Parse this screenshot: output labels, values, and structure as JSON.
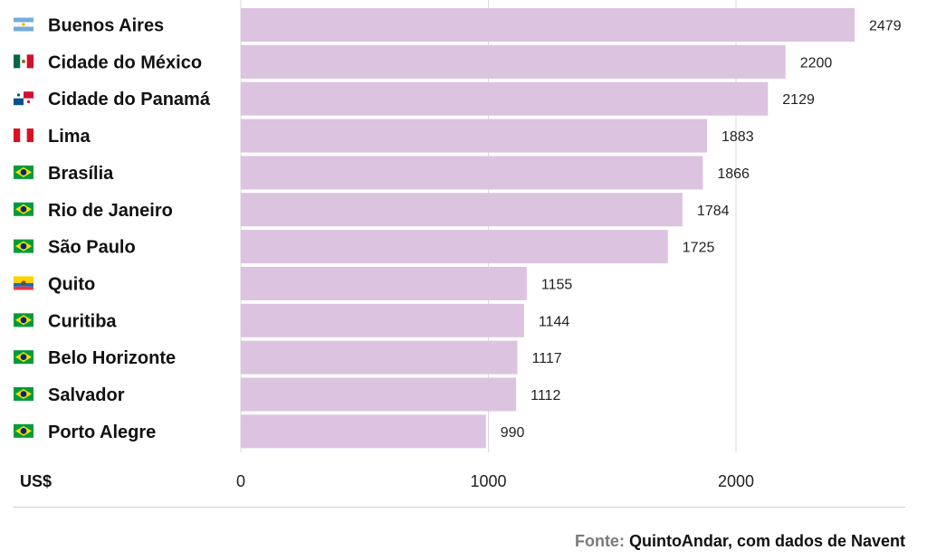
{
  "chart_data": {
    "type": "bar",
    "orientation": "horizontal",
    "categories": [
      "Buenos Aires",
      "Cidade do México",
      "Cidade do Panamá",
      "Lima",
      "Brasília",
      "Rio de Janeiro",
      "São Paulo",
      "Quito",
      "Curitiba",
      "Belo Horizonte",
      "Salvador",
      "Porto Alegre"
    ],
    "values": [
      2479,
      2200,
      2129,
      1883,
      1866,
      1784,
      1725,
      1155,
      1144,
      1117,
      1112,
      990
    ],
    "value_labels": [
      "2479",
      "2200",
      "2129",
      "1883",
      "1866",
      "1784",
      "1725",
      "1155",
      "1144",
      "1117",
      "1112",
      "990"
    ],
    "flags": [
      "argentina-flag",
      "mexico-flag",
      "panama-flag",
      "peru-flag",
      "brazil-flag",
      "brazil-flag",
      "brazil-flag",
      "ecuador-flag",
      "brazil-flag",
      "brazil-flag",
      "brazil-flag",
      "brazil-flag"
    ],
    "xlim": [
      0,
      2550
    ],
    "xticks": [
      0,
      1000,
      2000
    ],
    "xtick_labels": [
      "0",
      "1000",
      "2000"
    ],
    "unit_label": "US$",
    "grid": "vertical",
    "bar_color": "#dcc3e0",
    "grid_color": "#d9d9d9"
  },
  "source": {
    "prefix": "Fonte:",
    "text": "QuintoAndar, com dados de Navent"
  }
}
